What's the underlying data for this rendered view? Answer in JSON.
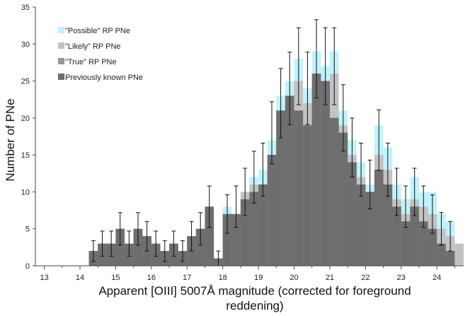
{
  "chart_data": {
    "type": "bar",
    "title": "",
    "xlabel": "Apparent [OIII] 5007Å  magnitude (corrected for foreground",
    "xlabel_line2": "reddening)",
    "ylabel": "Number of PNe",
    "xlim": [
      12.75,
      24.75
    ],
    "ylim": [
      0,
      35
    ],
    "xticks": [
      "13",
      "14",
      "15",
      "16",
      "17",
      "18",
      "19",
      "20",
      "21",
      "22",
      "23",
      "24"
    ],
    "yticks": [
      "0",
      "5",
      "10",
      "15",
      "20",
      "25",
      "30",
      "35"
    ],
    "grid": false,
    "legend_position": "top-left",
    "bin_width": 0.25,
    "series": [
      {
        "name": "\"Possible\" RP PNe",
        "color": "#bff3fb",
        "x": [
          14.375,
          14.625,
          14.875,
          15.125,
          15.375,
          15.625,
          15.875,
          16.125,
          16.375,
          16.625,
          16.875,
          17.125,
          17.375,
          17.625,
          17.875,
          18.125,
          18.375,
          18.625,
          18.875,
          19.125,
          19.375,
          19.625,
          19.875,
          20.125,
          20.375,
          20.625,
          20.875,
          21.125,
          21.375,
          21.625,
          21.875,
          22.125,
          22.375,
          22.625,
          22.875,
          23.125,
          23.375,
          23.625,
          23.875,
          24.125,
          24.375,
          24.625
        ],
        "values": [
          2,
          3,
          3,
          5,
          3,
          5,
          4,
          3,
          2,
          3,
          2,
          4,
          5,
          8,
          1,
          8,
          7,
          10,
          12,
          13,
          17,
          23,
          25,
          28,
          24,
          29,
          27,
          29,
          21,
          17,
          14,
          11,
          19,
          16,
          11,
          9,
          12,
          10,
          10,
          7,
          6,
          3
        ]
      },
      {
        "name": "\"Likely\" RP PNe",
        "color": "#c2c2c2",
        "x": [
          14.375,
          14.625,
          14.875,
          15.125,
          15.375,
          15.625,
          15.875,
          16.125,
          16.375,
          16.625,
          16.875,
          17.125,
          17.375,
          17.625,
          17.875,
          18.125,
          18.375,
          18.625,
          18.875,
          19.125,
          19.375,
          19.625,
          19.875,
          20.125,
          20.375,
          20.625,
          20.875,
          21.125,
          21.375,
          21.625,
          21.875,
          22.125,
          22.375,
          22.625,
          22.875,
          23.125,
          23.375,
          23.625,
          23.875,
          24.125,
          24.375,
          24.625
        ],
        "values": [
          2,
          3,
          3,
          5,
          3,
          5,
          4,
          3,
          2,
          3,
          2,
          4,
          5,
          8,
          1,
          7,
          7,
          10,
          11,
          11,
          15,
          21,
          23,
          25,
          22,
          26,
          25,
          26,
          19,
          15,
          12,
          10,
          15,
          13,
          9,
          7,
          9,
          8,
          7,
          5,
          4,
          3
        ]
      },
      {
        "name": "\"True\" RP PNe",
        "color": "#969696",
        "x": [
          14.375,
          14.625,
          14.875,
          15.125,
          15.375,
          15.625,
          15.875,
          16.125,
          16.375,
          16.625,
          16.875,
          17.125,
          17.375,
          17.625,
          17.875,
          18.125,
          18.375,
          18.625,
          18.875,
          19.125,
          19.375,
          19.625,
          19.875,
          20.125,
          20.375,
          20.625,
          20.875,
          21.125,
          21.375,
          21.625,
          21.875,
          22.125,
          22.375,
          22.625,
          22.875,
          23.125,
          23.375,
          23.625,
          23.875,
          24.125,
          24.375,
          24.625
        ],
        "values": [
          2,
          3,
          3,
          5,
          3,
          5,
          4,
          3,
          2,
          3,
          2,
          4,
          5,
          8,
          1,
          7,
          7,
          9,
          10,
          11,
          15,
          21,
          23,
          21,
          19,
          26,
          25,
          20,
          18,
          14,
          11,
          10,
          13,
          11,
          8,
          6,
          8,
          6,
          5,
          3,
          2,
          0
        ]
      },
      {
        "name": "Previously known PNe",
        "color": "#6e6e6e",
        "x": [
          14.375,
          14.625,
          14.875,
          15.125,
          15.375,
          15.625,
          15.875,
          16.125,
          16.375,
          16.625,
          16.875,
          17.125,
          17.375,
          17.625,
          17.875,
          18.125,
          18.375,
          18.625,
          18.875,
          19.125,
          19.375,
          19.625,
          19.875,
          20.125,
          20.375,
          20.625,
          20.875,
          21.125,
          21.375,
          21.625,
          21.875,
          22.125,
          22.375,
          22.625,
          22.875,
          23.125,
          23.375,
          23.625,
          23.875,
          24.125,
          24.375,
          24.625
        ],
        "values": [
          2,
          3,
          3,
          5,
          3,
          5,
          4,
          3,
          2,
          3,
          2,
          4,
          5,
          8,
          1,
          7,
          7,
          9,
          10,
          11,
          15,
          21,
          23,
          21,
          19,
          26,
          25,
          20,
          18,
          14,
          11,
          10,
          13,
          11,
          8,
          6,
          8,
          6,
          5,
          3,
          2,
          0
        ]
      }
    ],
    "error_bars": {
      "x": [
        14.375,
        14.625,
        14.875,
        15.125,
        15.375,
        15.625,
        15.875,
        16.125,
        16.375,
        16.625,
        16.875,
        17.125,
        17.375,
        17.625,
        17.875,
        18.125,
        18.375,
        18.625,
        18.875,
        19.125,
        19.375,
        19.625,
        19.875,
        20.125,
        20.375,
        20.625,
        20.875,
        21.125,
        21.375,
        21.625,
        21.875,
        22.125,
        22.375,
        22.625,
        22.875,
        23.125,
        23.375,
        23.625,
        23.875,
        24.125,
        24.375
      ],
      "y": [
        2,
        3,
        3,
        5,
        3,
        5,
        4,
        3,
        2,
        3,
        2,
        4,
        5,
        8,
        1,
        7,
        8,
        10,
        12,
        13,
        18,
        22,
        24,
        27,
        24,
        28,
        27,
        27,
        20,
        16,
        13,
        11,
        17,
        13,
        10,
        8,
        10,
        8,
        7,
        5,
        4
      ],
      "err": [
        1.4,
        1.7,
        1.7,
        2.2,
        1.7,
        2.2,
        2,
        1.7,
        1.4,
        1.7,
        1.4,
        2,
        2.2,
        2.8,
        1,
        2.6,
        2.8,
        3.2,
        3.5,
        3.6,
        4.2,
        4.7,
        4.9,
        5.2,
        4.9,
        5.3,
        5.2,
        5.2,
        4.5,
        4,
        3.6,
        3.3,
        4.1,
        3.6,
        3.2,
        2.8,
        3.2,
        2.8,
        2.6,
        2.2,
        2
      ]
    }
  }
}
